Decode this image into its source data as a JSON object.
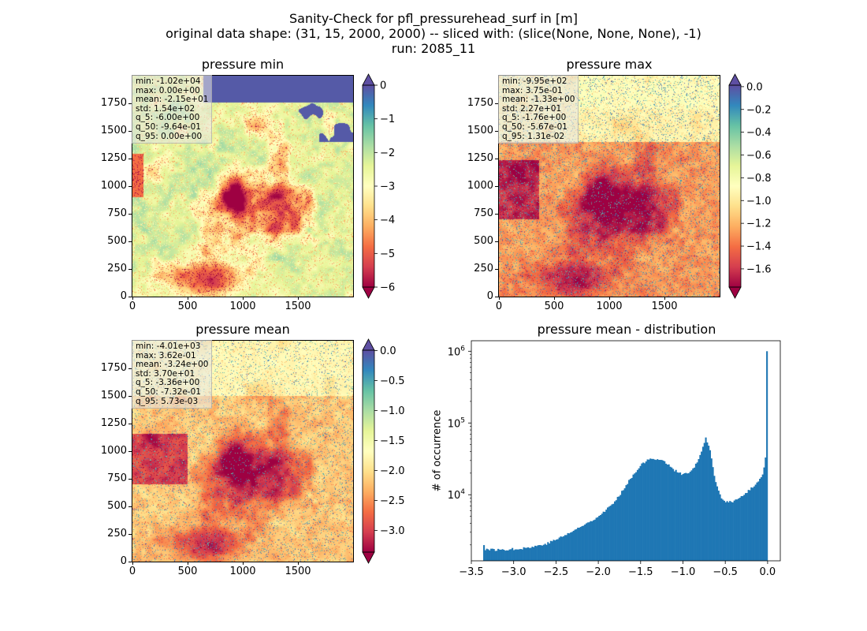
{
  "figure": {
    "title_lines": [
      "Sanity-Check for pfl_pressurehead_surf in [m]",
      "original data shape: (31, 15, 2000, 2000) -- sliced with: (slice(None, None, None), -1)",
      "run: 2085_11"
    ]
  },
  "colors": {
    "spectral": [
      "#9e0142",
      "#d53e4f",
      "#f46d43",
      "#fdae61",
      "#fee08b",
      "#ffffbf",
      "#e6f598",
      "#abdda4",
      "#66c2a5",
      "#3288bd",
      "#5e4fa2"
    ],
    "hist_bar": "#1f77b4"
  },
  "panels": [
    {
      "title": "pressure min",
      "x_ticks": [
        "0",
        "500",
        "1000",
        "1500"
      ],
      "y_ticks": [
        "0",
        "250",
        "500",
        "750",
        "1000",
        "1250",
        "1500",
        "1750"
      ],
      "stats": [
        "min: -1.02e+04",
        "max: 0.00e+00",
        "mean: -2.15e+01",
        "std: 1.54e+02",
        "q_5: -6.00e+00",
        "q_50: -9.64e-01",
        "q_95: 0.00e+00"
      ],
      "colorbar": {
        "range": [
          -6,
          0
        ],
        "ticks": [
          "0",
          "−1",
          "−2",
          "−3",
          "−4",
          "−5",
          "−6"
        ],
        "tick_values": [
          0,
          -1,
          -2,
          -3,
          -4,
          -5,
          -6
        ],
        "extend": "both"
      }
    },
    {
      "title": "pressure max",
      "x_ticks": [
        "0",
        "500",
        "1000",
        "1500"
      ],
      "y_ticks": [
        "0",
        "250",
        "500",
        "750",
        "1000",
        "1250",
        "1500",
        "1750"
      ],
      "stats": [
        "min: -9.95e+02",
        "max: 3.75e-01",
        "mean: -1.33e+00",
        "std: 2.27e+01",
        "q_5: -1.76e+00",
        "q_50: -5.67e-01",
        "q_95: 1.31e-02"
      ],
      "colorbar": {
        "range": [
          -1.76,
          0.013
        ],
        "ticks": [
          "0.0",
          "−0.2",
          "−0.4",
          "−0.6",
          "−0.8",
          "−1.0",
          "−1.2",
          "−1.4",
          "−1.6"
        ],
        "tick_values": [
          0,
          -0.2,
          -0.4,
          -0.6,
          -0.8,
          -1.0,
          -1.2,
          -1.4,
          -1.6
        ],
        "extend": "both"
      }
    },
    {
      "title": "pressure mean",
      "x_ticks": [
        "0",
        "500",
        "1000",
        "1500"
      ],
      "y_ticks": [
        "0",
        "250",
        "500",
        "750",
        "1000",
        "1250",
        "1500",
        "1750"
      ],
      "stats": [
        "min: -4.01e+03",
        "max: 3.62e-01",
        "mean: -3.24e+00",
        "std: 3.70e+01",
        "q_5: -3.36e+00",
        "q_50: -7.32e-01",
        "q_95: 5.73e-03"
      ],
      "colorbar": {
        "range": [
          -3.36,
          0.006
        ],
        "ticks": [
          "0.0",
          "−0.5",
          "−1.0",
          "−1.5",
          "−2.0",
          "−2.5",
          "−3.0"
        ],
        "tick_values": [
          0,
          -0.5,
          -1.0,
          -1.5,
          -2.0,
          -2.5,
          -3.0
        ],
        "extend": "both"
      }
    }
  ],
  "chart_data": [
    {
      "type": "heatmap",
      "title": "pressure min",
      "xlim": [
        0,
        2000
      ],
      "ylim": [
        0,
        2000
      ],
      "color_range": [
        -6,
        0
      ],
      "colormap": "Spectral"
    },
    {
      "type": "heatmap",
      "title": "pressure max",
      "xlim": [
        0,
        2000
      ],
      "ylim": [
        0,
        2000
      ],
      "color_range": [
        -1.76,
        0.013
      ],
      "colormap": "Spectral"
    },
    {
      "type": "heatmap",
      "title": "pressure mean",
      "xlim": [
        0,
        2000
      ],
      "ylim": [
        0,
        2000
      ],
      "color_range": [
        -3.36,
        0.006
      ],
      "colormap": "Spectral"
    },
    {
      "type": "bar",
      "title": "pressure mean - distribution",
      "xlabel": "",
      "ylabel": "# of occurrence",
      "y_scale": "log",
      "xlim": [
        -3.5,
        0.15
      ],
      "ylim": [
        1200,
        1400000
      ],
      "x_ticks": [
        "−3.5",
        "−3.0",
        "−2.5",
        "−2.0",
        "−1.5",
        "−1.0",
        "−0.5",
        "0.0"
      ],
      "x_tick_values": [
        -3.5,
        -3.0,
        -2.5,
        -2.0,
        -1.5,
        -1.0,
        -0.5,
        0.0
      ],
      "y_tick_exponents": [
        4,
        5,
        6
      ],
      "anchors": [
        [
          -3.36,
          2200
        ],
        [
          -3.34,
          1750
        ],
        [
          -3.2,
          1700
        ],
        [
          -3.0,
          1750
        ],
        [
          -2.8,
          1850
        ],
        [
          -2.6,
          2100
        ],
        [
          -2.4,
          2700
        ],
        [
          -2.2,
          3600
        ],
        [
          -2.0,
          5000
        ],
        [
          -1.8,
          8000
        ],
        [
          -1.65,
          15000
        ],
        [
          -1.5,
          26000
        ],
        [
          -1.4,
          31000
        ],
        [
          -1.3,
          32000
        ],
        [
          -1.2,
          28000
        ],
        [
          -1.1,
          22000
        ],
        [
          -1.0,
          19000
        ],
        [
          -0.9,
          21000
        ],
        [
          -0.8,
          34000
        ],
        [
          -0.73,
          62000
        ],
        [
          -0.68,
          40000
        ],
        [
          -0.62,
          16000
        ],
        [
          -0.55,
          8800
        ],
        [
          -0.5,
          8000
        ],
        [
          -0.4,
          8100
        ],
        [
          -0.3,
          9500
        ],
        [
          -0.2,
          12000
        ],
        [
          -0.1,
          16000
        ],
        [
          -0.05,
          20000
        ],
        [
          -0.015,
          40000
        ],
        [
          -0.006,
          1000000
        ]
      ]
    }
  ]
}
